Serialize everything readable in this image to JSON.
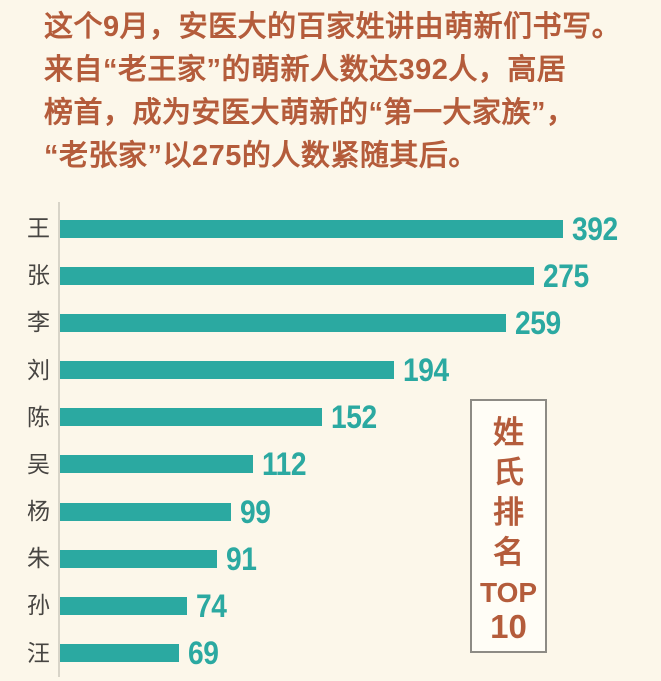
{
  "background": "#fcf7ea",
  "intro": {
    "color": "#b45c3b",
    "lines": [
      "这个9月，安医大的百家姓讲由萌新们书写。",
      "来自“老王家”的萌新人数达392人，高居",
      "榜首，成为安医大萌新的“第一大家族”，",
      "“老张家”以275的人数紧随其后。"
    ]
  },
  "chart_data": {
    "type": "bar",
    "orientation": "horizontal",
    "categories": [
      "王",
      "张",
      "李",
      "刘",
      "陈",
      "吴",
      "杨",
      "朱",
      "孙",
      "汪"
    ],
    "values": [
      392,
      275,
      259,
      194,
      152,
      112,
      99,
      91,
      74,
      69
    ],
    "value_labels_shown": true,
    "grid": false,
    "legend": false,
    "xlim": [
      0,
      392
    ],
    "bar_color": "#2ba9a1",
    "value_color": "#2ba9a1",
    "category_color": "#474542",
    "axis_color": "#d8d4c8"
  },
  "side_box": {
    "title_vertical": "姓氏排名",
    "top_label": "TOP",
    "top_number": "10",
    "text_color": "#b45c3b",
    "border_color": "#8d8b85",
    "background": "#fffdf6"
  }
}
